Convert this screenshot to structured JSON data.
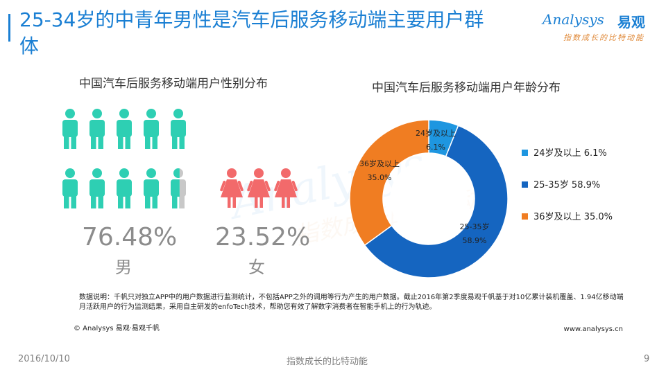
{
  "header": {
    "title": "25-34岁的中青年男性是汽车后服务移动端主要用户群体",
    "logo_main": "Analysys",
    "logo_cn": "易观",
    "logo_sub": "指数成长的比特动能"
  },
  "gender_section": {
    "subtitle": "中国汽车后服务移动端用户性别分布",
    "male_percent": "76.48%",
    "male_label": "男",
    "female_percent": "23.52%",
    "female_label": "女",
    "male_color": "#2ecfb3",
    "female_color": "#f26a6b",
    "icon_name_male": "male-person-icon",
    "icon_name_female": "female-person-icon"
  },
  "age_section": {
    "subtitle": "中国汽车后服务移动端用户年龄分布"
  },
  "chart_data": [
    {
      "type": "pictogram",
      "categories": [
        "男",
        "女"
      ],
      "values": [
        76.48,
        23.52
      ],
      "unit": "%",
      "colors": [
        "#2ecfb3",
        "#f26a6b"
      ]
    },
    {
      "type": "pie",
      "subtype": "donut",
      "categories": [
        "24岁及以上",
        "25-35岁",
        "36岁及以上"
      ],
      "values": [
        6.1,
        58.9,
        35.0
      ],
      "unit": "%",
      "data_labels": [
        {
          "name": "24岁及以上",
          "value": "6.1%"
        },
        {
          "name": "25-35岁",
          "value": "58.9%"
        },
        {
          "name": "36岁及以上",
          "value": "35.0%"
        }
      ],
      "legend": [
        {
          "label": "24岁及以上",
          "value": "6.1%"
        },
        {
          "label": "25-35岁",
          "value": "58.9%"
        },
        {
          "label": "36岁及以上",
          "value": "35.0%"
        }
      ],
      "legend_position": "right",
      "colors": [
        "#1e96e0",
        "#1565c0",
        "#f07d22"
      ]
    }
  ],
  "notes": {
    "data_note": "数据说明：千帆只对独立APP中的用户数据进行监测统计，不包括APP之外的调用等行为产生的用户数据。截止2016年第2季度易观千帆基于对10亿累计装机覆盖、1.94亿移动端月活跃用户的行为监测结果，采用自主研发的enfoTech技术，帮助您有效了解数字消费者在智能手机上的行为轨迹。",
    "copyright": "© Analysys 易观·易观千帆",
    "website": "www.analysys.cn"
  },
  "footer": {
    "date": "2016/10/10",
    "slogan": "指数成长的比特动能",
    "page": "9"
  },
  "watermark": {
    "text_en": "Analysys",
    "text_cn": "指数成长的比特动能"
  }
}
